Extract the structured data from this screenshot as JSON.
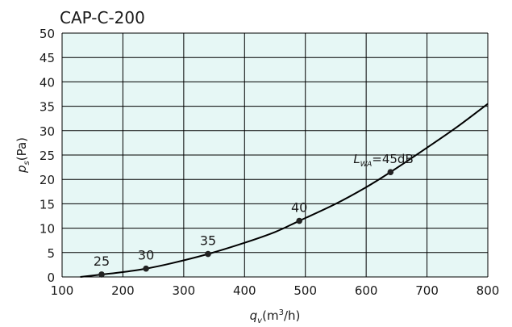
{
  "chart_data": {
    "type": "line",
    "title": "CAP-C-200",
    "xlabel": {
      "base": "q",
      "sub": "v",
      "unit_pre": "(m",
      "sup": "3",
      "unit_post": "/h)"
    },
    "ylabel": {
      "base": "p",
      "sub": "s",
      "unit": "(Pa)"
    },
    "xlim": [
      100,
      800
    ],
    "ylim": [
      0,
      50
    ],
    "xticks": [
      100,
      200,
      300,
      400,
      500,
      600,
      700,
      800
    ],
    "yticks": [
      0,
      5,
      10,
      15,
      20,
      25,
      30,
      35,
      40,
      45,
      50
    ],
    "grid": true,
    "plot_background": "#e6f7f5",
    "line_color": "#000000",
    "curve": {
      "x": [
        130,
        165,
        200,
        238,
        280,
        340,
        400,
        450,
        490,
        550,
        600,
        640,
        700,
        750,
        800
      ],
      "y": [
        0.0,
        0.5,
        1.0,
        1.7,
        2.8,
        4.7,
        7.0,
        9.2,
        11.5,
        15.0,
        18.4,
        21.5,
        26.5,
        30.8,
        35.5
      ]
    },
    "points": [
      {
        "x": 165,
        "y": 0.5,
        "label": "25"
      },
      {
        "x": 238,
        "y": 1.7,
        "label": "30"
      },
      {
        "x": 340,
        "y": 4.7,
        "label": "35"
      },
      {
        "x": 490,
        "y": 11.5,
        "label": "40"
      },
      {
        "x": 640,
        "y": 21.5,
        "label": "=45dB",
        "label_prefix": {
          "base": "L",
          "sub": "WA"
        }
      }
    ]
  }
}
